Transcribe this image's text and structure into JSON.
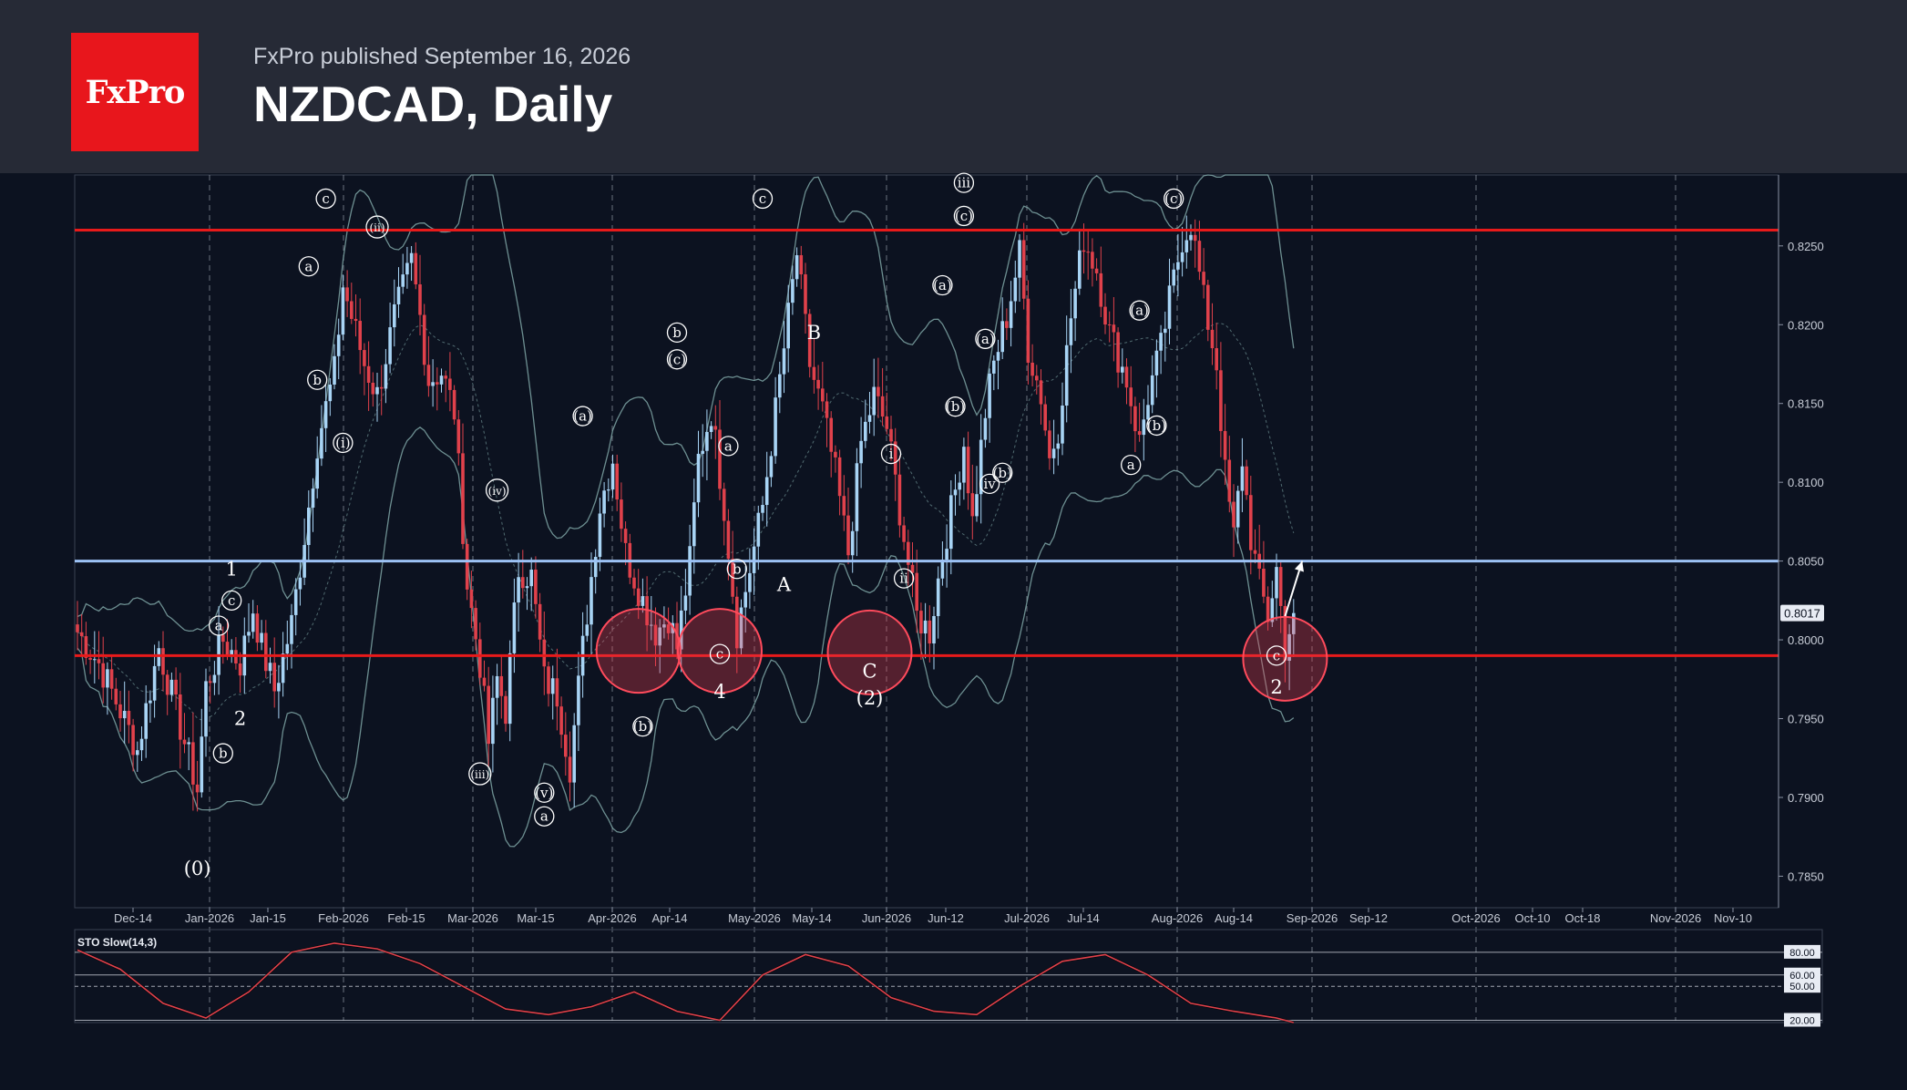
{
  "header": {
    "logo_text": "FxPro",
    "subtitle": "FxPro published September 16, 2026",
    "title": "NZDCAD, Daily"
  },
  "colors": {
    "background": "#0c1220",
    "header": "#262a36",
    "logo": "#e8161c",
    "bull_candle": "#a8d4f5",
    "bear_candle": "#e0414b",
    "resistance_line": "#e81a1a",
    "support_line": "#9cc2f5",
    "bollinger": "#7fa6a6",
    "stochastic": "#e0414b"
  },
  "chart_data": [
    {
      "type": "candlestick",
      "symbol": "NZDCAD",
      "timeframe": "Daily",
      "ylim": [
        0.783,
        0.8295
      ],
      "y_ticks": [
        "0.8250",
        "0.8200",
        "0.8150",
        "0.8100",
        "0.8050",
        "0.8000",
        "0.7950",
        "0.7900",
        "0.7850"
      ],
      "x_ticks": [
        "Dec-14",
        "Jan-2026",
        "Jan-15",
        "Feb-2026",
        "Feb-15",
        "Mar-2026",
        "Mar-15",
        "Apr-2026",
        "Apr-14",
        "May-2026",
        "May-14",
        "Jun-2026",
        "Jun-12",
        "Jul-2026",
        "Jul-14",
        "Aug-2026",
        "Aug-14",
        "Sep-2026",
        "Sep-12",
        "Oct-2026",
        "Oct-10",
        "Oct-18",
        "Nov-2026",
        "Nov-10"
      ],
      "current_price": "0.8017",
      "horizontal_levels": [
        {
          "value": 0.826,
          "color": "#e81a1a"
        },
        {
          "value": 0.805,
          "color": "#9cc2f5"
        },
        {
          "value": 0.799,
          "color": "#e81a1a"
        }
      ],
      "price_path": [
        [
          0,
          0.8005
        ],
        [
          5,
          0.7985
        ],
        [
          10,
          0.7955
        ],
        [
          14,
          0.793
        ],
        [
          19,
          0.7995
        ],
        [
          24,
          0.7945
        ],
        [
          28,
          0.7905
        ],
        [
          30,
          0.797
        ],
        [
          34,
          0.8
        ],
        [
          38,
          0.7985
        ],
        [
          41,
          0.802
        ],
        [
          43,
          0.7995
        ],
        [
          46,
          0.7968
        ],
        [
          50,
          0.801
        ],
        [
          54,
          0.8085
        ],
        [
          56,
          0.8125
        ],
        [
          60,
          0.817
        ],
        [
          62,
          0.8225
        ],
        [
          65,
          0.8195
        ],
        [
          67,
          0.8175
        ],
        [
          70,
          0.8155
        ],
        [
          74,
          0.8205
        ],
        [
          78,
          0.824
        ],
        [
          80,
          0.8205
        ],
        [
          82,
          0.8165
        ],
        [
          85,
          0.817
        ],
        [
          88,
          0.8145
        ],
        [
          91,
          0.8035
        ],
        [
          94,
          0.7985
        ],
        [
          96,
          0.7935
        ],
        [
          98,
          0.7975
        ],
        [
          100,
          0.7955
        ],
        [
          103,
          0.8045
        ],
        [
          106,
          0.804
        ],
        [
          109,
          0.7975
        ],
        [
          112,
          0.7965
        ],
        [
          115,
          0.792
        ],
        [
          118,
          0.7995
        ],
        [
          122,
          0.8085
        ],
        [
          125,
          0.8115
        ],
        [
          128,
          0.8055
        ],
        [
          132,
          0.8025
        ],
        [
          135,
          0.8005
        ],
        [
          138,
          0.8015
        ],
        [
          140,
          0.7995
        ],
        [
          143,
          0.805
        ],
        [
          145,
          0.8115
        ],
        [
          148,
          0.8145
        ],
        [
          151,
          0.8085
        ],
        [
          154,
          0.8005
        ],
        [
          157,
          0.8045
        ],
        [
          160,
          0.8085
        ],
        [
          162,
          0.8125
        ],
        [
          165,
          0.8185
        ],
        [
          168,
          0.8245
        ],
        [
          171,
          0.8175
        ],
        [
          174,
          0.8145
        ],
        [
          177,
          0.8105
        ],
        [
          180,
          0.8055
        ],
        [
          183,
          0.8125
        ],
        [
          186,
          0.8155
        ],
        [
          189,
          0.8135
        ],
        [
          193,
          0.8065
        ],
        [
          196,
          0.8015
        ],
        [
          199,
          0.8005
        ],
        [
          202,
          0.8055
        ],
        [
          205,
          0.8095
        ],
        [
          207,
          0.8125
        ],
        [
          209,
          0.8075
        ],
        [
          212,
          0.8145
        ],
        [
          214,
          0.8175
        ],
        [
          217,
          0.8205
        ],
        [
          220,
          0.8245
        ],
        [
          222,
          0.8185
        ],
        [
          225,
          0.8155
        ],
        [
          227,
          0.8115
        ],
        [
          229,
          0.8135
        ],
        [
          232,
          0.8205
        ],
        [
          235,
          0.8255
        ],
        [
          238,
          0.8235
        ],
        [
          241,
          0.8195
        ],
        [
          245,
          0.8165
        ],
        [
          248,
          0.8125
        ],
        [
          250,
          0.8155
        ],
        [
          253,
          0.8185
        ],
        [
          255,
          0.8215
        ],
        [
          258,
          0.8255
        ],
        [
          260,
          0.8265
        ],
        [
          263,
          0.8215
        ],
        [
          266,
          0.8175
        ],
        [
          268,
          0.8105
        ],
        [
          270,
          0.8065
        ],
        [
          272,
          0.8115
        ],
        [
          274,
          0.8065
        ],
        [
          276,
          0.8035
        ],
        [
          278,
          0.8015
        ],
        [
          280,
          0.8045
        ],
        [
          282,
          0.7995
        ],
        [
          284,
          0.8017
        ]
      ],
      "annotations": [
        {
          "text": "(0)",
          "i": 28,
          "y": 0.7855,
          "circled": false
        },
        {
          "text": "1",
          "i": 36,
          "y": 0.8045,
          "circled": false
        },
        {
          "text": "2",
          "i": 38,
          "y": 0.795,
          "circled": false
        },
        {
          "text": "a",
          "i": 33,
          "y": 0.8009,
          "circled": true
        },
        {
          "text": "b",
          "i": 34,
          "y": 0.7928,
          "circled": true
        },
        {
          "text": "c",
          "i": 36,
          "y": 0.8025,
          "circled": true
        },
        {
          "text": "a",
          "i": 54,
          "y": 0.8237,
          "circled": true
        },
        {
          "text": "b",
          "i": 56,
          "y": 0.8165,
          "circled": true
        },
        {
          "text": "c",
          "i": 58,
          "y": 0.828,
          "circled": true
        },
        {
          "text": "(i)",
          "i": 62,
          "y": 0.8125,
          "circled": true
        },
        {
          "text": "(ii)",
          "i": 70,
          "y": 0.8262,
          "circled": true
        },
        {
          "text": "(iii)",
          "i": 94,
          "y": 0.7915,
          "circled": true
        },
        {
          "text": "(iv)",
          "i": 98,
          "y": 0.8095,
          "circled": true
        },
        {
          "text": "(v)",
          "i": 109,
          "y": 0.7903,
          "circled": true
        },
        {
          "text": "a",
          "i": 109,
          "y": 0.7888,
          "circled": true
        },
        {
          "text": "(a)",
          "i": 118,
          "y": 0.8142,
          "circled": true
        },
        {
          "text": "(b)",
          "i": 132,
          "y": 0.7945,
          "circled": true
        },
        {
          "text": "b",
          "i": 140,
          "y": 0.8195,
          "circled": true
        },
        {
          "text": "(c)",
          "i": 140,
          "y": 0.8178,
          "circled": true
        },
        {
          "text": "a",
          "i": 152,
          "y": 0.8123,
          "circled": true
        },
        {
          "text": "b",
          "i": 154,
          "y": 0.8045,
          "circled": true
        },
        {
          "text": "c",
          "i": 150,
          "y": 0.7991,
          "circled": true
        },
        {
          "text": "4",
          "i": 150,
          "y": 0.7967,
          "circled": false
        },
        {
          "text": "c",
          "i": 160,
          "y": 0.828,
          "circled": true
        },
        {
          "text": "A",
          "i": 165,
          "y": 0.8035,
          "circled": false
        },
        {
          "text": "B",
          "i": 172,
          "y": 0.8195,
          "circled": false
        },
        {
          "text": "C",
          "i": 185,
          "y": 0.798,
          "circled": false
        },
        {
          "text": "(2)",
          "i": 185,
          "y": 0.7963,
          "circled": false
        },
        {
          "text": "i",
          "i": 190,
          "y": 0.8118,
          "circled": true
        },
        {
          "text": "ii",
          "i": 193,
          "y": 0.8039,
          "circled": true
        },
        {
          "text": "(a)",
          "i": 202,
          "y": 0.8225,
          "circled": true
        },
        {
          "text": "(b)",
          "i": 205,
          "y": 0.8148,
          "circled": true
        },
        {
          "text": "iii",
          "i": 207,
          "y": 0.829,
          "circled": true
        },
        {
          "text": "(c)",
          "i": 207,
          "y": 0.8269,
          "circled": true
        },
        {
          "text": "(a)",
          "i": 212,
          "y": 0.8191,
          "circled": true
        },
        {
          "text": "iv",
          "i": 213,
          "y": 0.8099,
          "circled": true
        },
        {
          "text": "(b)",
          "i": 216,
          "y": 0.8106,
          "circled": true
        },
        {
          "text": "(a)",
          "i": 248,
          "y": 0.8209,
          "circled": true
        },
        {
          "text": "(b)",
          "i": 252,
          "y": 0.8136,
          "circled": true
        },
        {
          "text": "a",
          "i": 246,
          "y": 0.8111,
          "circled": true
        },
        {
          "text": "(c)",
          "i": 256,
          "y": 0.828,
          "circled": true
        },
        {
          "text": "c",
          "i": 280,
          "y": 0.799,
          "circled": true
        },
        {
          "text": "2",
          "i": 280,
          "y": 0.797,
          "circled": false
        }
      ],
      "circles": [
        {
          "i": 131,
          "y": 0.7993
        },
        {
          "i": 150,
          "y": 0.7993
        },
        {
          "i": 185,
          "y": 0.7992
        },
        {
          "i": 282,
          "y": 0.7988
        }
      ],
      "arrow": {
        "from": [
          282,
          0.8015
        ],
        "to": [
          286,
          0.805
        ]
      }
    },
    {
      "type": "line",
      "title": "STO Slow(14,3)",
      "ylim": [
        18,
        100
      ],
      "levels": [
        "80.00",
        "60.00",
        "50.00",
        "20.00"
      ],
      "x": [
        0,
        10,
        20,
        30,
        40,
        50,
        60,
        70,
        80,
        90,
        100,
        110,
        120,
        130,
        140,
        150,
        160,
        170,
        180,
        190,
        200,
        210,
        220,
        230,
        240,
        250,
        260,
        270,
        280,
        284
      ],
      "values": [
        82,
        65,
        35,
        22,
        45,
        80,
        88,
        83,
        70,
        50,
        30,
        25,
        32,
        45,
        28,
        20,
        60,
        78,
        68,
        40,
        28,
        25,
        50,
        72,
        78,
        60,
        35,
        28,
        22,
        18
      ]
    }
  ]
}
